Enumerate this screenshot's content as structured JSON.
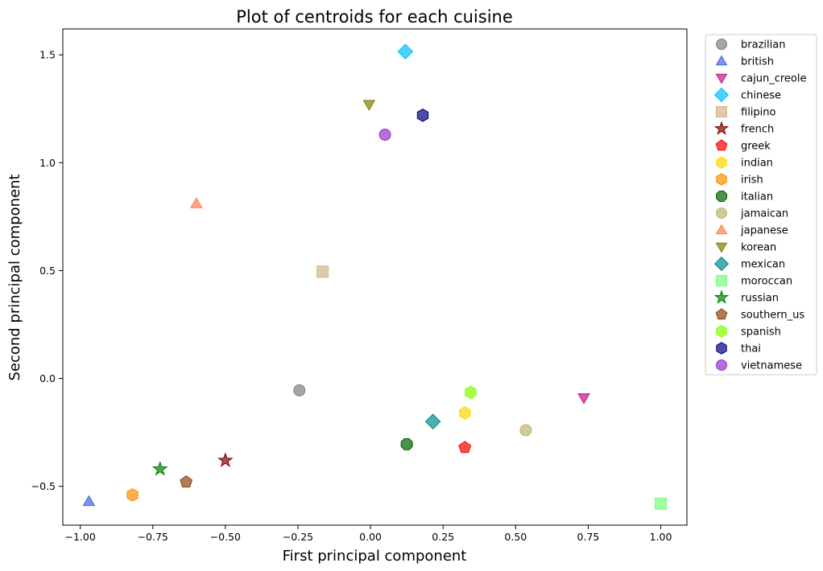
{
  "chart_data": {
    "type": "scatter",
    "title": "Plot of centroids for each cuisine",
    "xlabel": "First principal component",
    "ylabel": "Second principal component",
    "xlim": [
      -1.06,
      1.09
    ],
    "ylim": [
      -0.68,
      1.62
    ],
    "xticks": [
      -1.0,
      -0.75,
      -0.5,
      -0.25,
      0.0,
      0.25,
      0.5,
      0.75,
      1.0
    ],
    "xtick_labels": [
      "−1.00",
      "−0.75",
      "−0.50",
      "−0.25",
      "0.00",
      "0.25",
      "0.50",
      "0.75",
      "1.00"
    ],
    "yticks": [
      -0.5,
      0.0,
      0.5,
      1.0,
      1.5
    ],
    "ytick_labels": [
      "−0.5",
      "0.0",
      "0.5",
      "1.0",
      "1.5"
    ],
    "grid": false,
    "legend_position": "outside-right-top",
    "series": [
      {
        "name": "brazilian",
        "marker": "circle",
        "color": "#808080",
        "x": -0.245,
        "y": -0.055
      },
      {
        "name": "british",
        "marker": "triangle-up",
        "color": "#4169e1",
        "x": -0.97,
        "y": -0.57
      },
      {
        "name": "cajun_creole",
        "marker": "triangle-down",
        "color": "#c71585",
        "x": 0.735,
        "y": -0.09
      },
      {
        "name": "chinese",
        "marker": "diamond",
        "color": "#00bfff",
        "x": 0.12,
        "y": 1.515
      },
      {
        "name": "filipino",
        "marker": "square",
        "color": "#d2b48c",
        "x": -0.165,
        "y": 0.495
      },
      {
        "name": "french",
        "marker": "star",
        "color": "#800000",
        "x": -0.5,
        "y": -0.38
      },
      {
        "name": "greek",
        "marker": "pentagon",
        "color": "#ff0000",
        "x": 0.325,
        "y": -0.32
      },
      {
        "name": "indian",
        "marker": "hexagon",
        "color": "#ffd700",
        "x": 0.325,
        "y": -0.16
      },
      {
        "name": "irish",
        "marker": "hexagon",
        "color": "#ff8c00",
        "x": -0.82,
        "y": -0.54
      },
      {
        "name": "italian",
        "marker": "octagon",
        "color": "#006400",
        "x": 0.125,
        "y": -0.305
      },
      {
        "name": "jamaican",
        "marker": "circle",
        "color": "#bdb76b",
        "x": 0.535,
        "y": -0.24
      },
      {
        "name": "japanese",
        "marker": "triangle-up",
        "color": "#ff7f50",
        "x": -0.6,
        "y": 0.81
      },
      {
        "name": "korean",
        "marker": "triangle-down",
        "color": "#808000",
        "x": -0.005,
        "y": 1.27
      },
      {
        "name": "mexican",
        "marker": "diamond",
        "color": "#008b8b",
        "x": 0.215,
        "y": -0.2
      },
      {
        "name": "moroccan",
        "marker": "square",
        "color": "#7cfc7c",
        "x": 1.0,
        "y": -0.58
      },
      {
        "name": "russian",
        "marker": "star",
        "color": "#008000",
        "x": -0.725,
        "y": -0.42
      },
      {
        "name": "southern_us",
        "marker": "pentagon",
        "color": "#8b4513",
        "x": -0.635,
        "y": -0.48
      },
      {
        "name": "spanish",
        "marker": "hexagon",
        "color": "#7fff00",
        "x": 0.345,
        "y": -0.065
      },
      {
        "name": "thai",
        "marker": "hexagon",
        "color": "#000080",
        "x": 0.18,
        "y": 1.22
      },
      {
        "name": "vietnamese",
        "marker": "circle",
        "color": "#9932cc",
        "x": 0.05,
        "y": 1.13
      }
    ]
  }
}
